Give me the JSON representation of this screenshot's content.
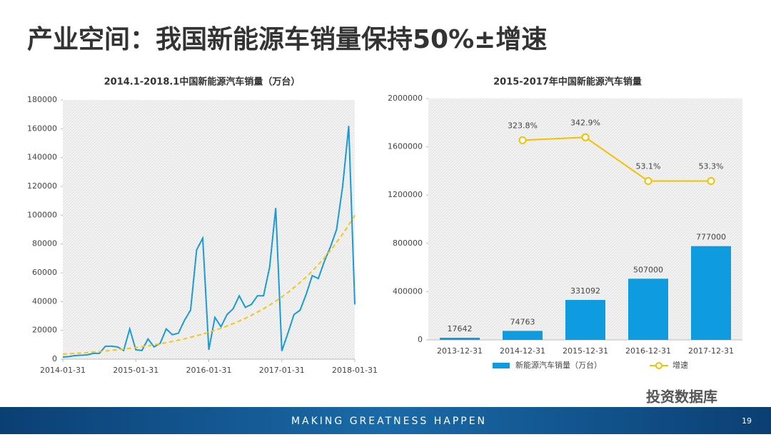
{
  "title": "产业空间：我国新能源车销量保持50%±增速",
  "chart_data": [
    {
      "type": "line",
      "title": "2014.1-2018.1中国新能源汽车销量（万台）",
      "x": [
        "2014-01-31",
        "2014-02-28",
        "2014-03-31",
        "2014-04-30",
        "2014-05-31",
        "2014-06-30",
        "2014-07-31",
        "2014-08-31",
        "2014-09-30",
        "2014-10-31",
        "2014-11-30",
        "2014-12-31",
        "2015-01-31",
        "2015-02-28",
        "2015-03-31",
        "2015-04-30",
        "2015-05-31",
        "2015-06-30",
        "2015-07-31",
        "2015-08-31",
        "2015-09-30",
        "2015-10-31",
        "2015-11-30",
        "2015-12-31",
        "2016-01-31",
        "2016-02-29",
        "2016-03-31",
        "2016-04-30",
        "2016-05-31",
        "2016-06-30",
        "2016-07-31",
        "2016-08-31",
        "2016-09-30",
        "2016-10-31",
        "2016-11-30",
        "2016-12-31",
        "2017-01-31",
        "2017-02-28",
        "2017-03-31",
        "2017-04-30",
        "2017-05-31",
        "2017-06-30",
        "2017-07-31",
        "2017-08-31",
        "2017-09-30",
        "2017-10-31",
        "2017-11-30",
        "2017-12-31",
        "2018-01-31"
      ],
      "xticks": [
        0,
        12,
        24,
        36,
        48
      ],
      "series": [
        {
          "color": "#1a9ad6",
          "dash": false,
          "values": [
            1500,
            1800,
            2500,
            2700,
            3000,
            4000,
            4000,
            9000,
            9000,
            8500,
            6000,
            21000,
            6500,
            6000,
            14000,
            8500,
            11000,
            21000,
            17000,
            18000,
            27000,
            34000,
            76000,
            84000,
            6500,
            29000,
            22500,
            31000,
            35000,
            44000,
            36000,
            38000,
            44000,
            44000,
            64000,
            105000,
            5700,
            18000,
            31000,
            34000,
            45000,
            58000,
            56000,
            68000,
            78000,
            90000,
            120000,
            162000,
            38000
          ]
        },
        {
          "color": "#f5c518",
          "dash": true,
          "values": [
            3500,
            3800,
            4000,
            4300,
            4600,
            5000,
            5300,
            5700,
            6100,
            6600,
            7000,
            7500,
            8100,
            8700,
            9300,
            10000,
            10700,
            11500,
            12300,
            13200,
            14100,
            15200,
            16300,
            17400,
            18700,
            20000,
            21500,
            23000,
            24700,
            26500,
            28400,
            30500,
            32700,
            35000,
            37600,
            40300,
            43200,
            46300,
            49700,
            53300,
            57100,
            61200,
            65700,
            70400,
            75500,
            81000,
            86900,
            93100,
            99900
          ]
        }
      ],
      "ylim": [
        0,
        180000
      ],
      "yticks": [
        0,
        20000,
        40000,
        60000,
        80000,
        100000,
        120000,
        140000,
        160000,
        180000
      ]
    },
    {
      "type": "bar",
      "title": "2015-2017年中国新能源汽车销量",
      "categories": [
        "2013-12-31",
        "2014-12-31",
        "2015-12-31",
        "2016-12-31",
        "2017-12-31"
      ],
      "series": [
        {
          "name": "新能源汽车销量（万台）",
          "type": "bar",
          "color": "#0e9be0",
          "values": [
            17642,
            74763,
            331092,
            507000,
            777000
          ]
        },
        {
          "name": "增速",
          "type": "line",
          "axis": "y2",
          "color": "#f2c200",
          "values": [
            null,
            323.8,
            342.9,
            53.1,
            53.3
          ],
          "value_labels": [
            null,
            "323.8%",
            "342.9%",
            "53.1%",
            "53.3%"
          ]
        }
      ],
      "ylim": [
        0,
        2000000
      ],
      "yticks": [
        0,
        400000,
        800000,
        1200000,
        1600000,
        2000000
      ],
      "y2lim": [
        -1000,
        600
      ],
      "legend": "bottom"
    }
  ],
  "footer": {
    "slogan": "MAKING GREATNESS HAPPEN",
    "source": "投资数据库",
    "page": "19"
  }
}
